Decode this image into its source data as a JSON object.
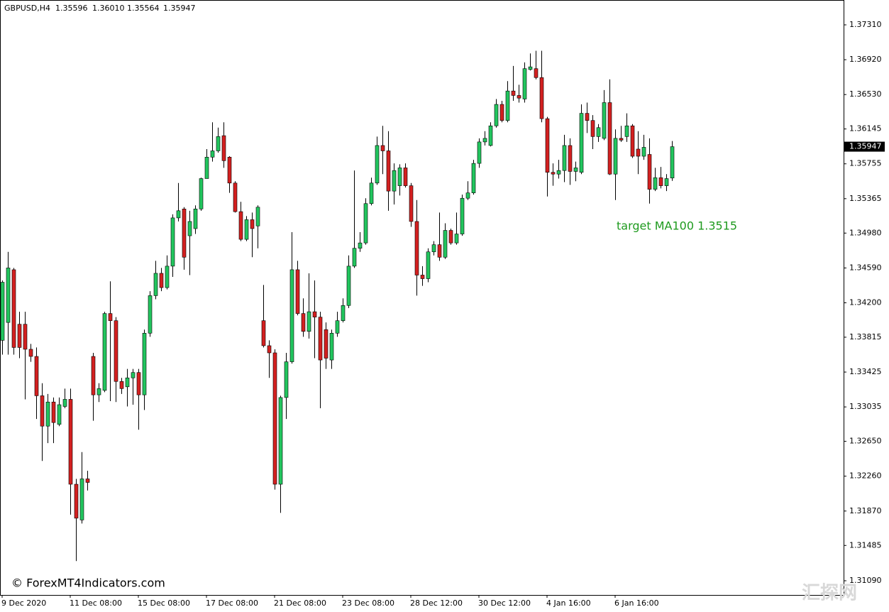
{
  "chart_data": {
    "type": "candlestick",
    "header": {
      "symbol": "GBPUSD,H4",
      "ohlc": [
        "1.35596",
        "1.36010",
        "1.35564",
        "1.35947"
      ]
    },
    "annotation": "target MA100 1.3515",
    "watermark": "© ForexMT4Indicators.com",
    "corner_mark": "汇探网",
    "last_price": {
      "value": 1.35947,
      "label": "1.35947"
    },
    "up_color": "#22c55e",
    "down_color": "#d32020",
    "wick_color": "#000000",
    "grid": false,
    "ylim": [
      1.30931,
      1.37588
    ],
    "yticks": [
      {
        "value": 1.3731,
        "label": "1.37310"
      },
      {
        "value": 1.3692,
        "label": "1.36920"
      },
      {
        "value": 1.3653,
        "label": "1.36530"
      },
      {
        "value": 1.36145,
        "label": "1.36145"
      },
      {
        "value": 1.35755,
        "label": "1.35755"
      },
      {
        "value": 1.35365,
        "label": "1.35365"
      },
      {
        "value": 1.3498,
        "label": "1.34980"
      },
      {
        "value": 1.3459,
        "label": "1.34590"
      },
      {
        "value": 1.342,
        "label": "1.34200"
      },
      {
        "value": 1.33815,
        "label": "1.33815"
      },
      {
        "value": 1.33425,
        "label": "1.33425"
      },
      {
        "value": 1.33035,
        "label": "1.33035"
      },
      {
        "value": 1.3265,
        "label": "1.32650"
      },
      {
        "value": 1.3226,
        "label": "1.32260"
      },
      {
        "value": 1.3187,
        "label": "1.31870"
      },
      {
        "value": 1.31485,
        "label": "1.31485"
      },
      {
        "value": 1.3109,
        "label": "1.31090"
      }
    ],
    "categories": [
      "9 Dec 2020",
      null,
      null,
      null,
      null,
      null,
      null,
      null,
      null,
      null,
      null,
      null,
      "11 Dec 08:00",
      null,
      null,
      null,
      null,
      null,
      null,
      null,
      null,
      null,
      null,
      null,
      "15 Dec 08:00",
      null,
      null,
      null,
      null,
      null,
      null,
      null,
      null,
      null,
      null,
      null,
      "17 Dec 08:00",
      null,
      null,
      null,
      null,
      null,
      null,
      null,
      null,
      null,
      null,
      null,
      "21 Dec 08:00",
      null,
      null,
      null,
      null,
      null,
      null,
      null,
      null,
      null,
      null,
      null,
      "23 Dec 08:00",
      null,
      null,
      null,
      null,
      null,
      null,
      null,
      null,
      null,
      null,
      null,
      "28 Dec 12:00",
      null,
      null,
      null,
      null,
      null,
      null,
      null,
      null,
      null,
      null,
      null,
      "30 Dec 12:00",
      null,
      null,
      null,
      null,
      null,
      null,
      null,
      null,
      null,
      null,
      null,
      "4 Jan 16:00",
      null,
      null,
      null,
      null,
      null,
      null,
      null,
      null,
      null,
      null,
      null,
      "6 Jan 16:00",
      null,
      null,
      null,
      null,
      null,
      null,
      null,
      null,
      null,
      null
    ],
    "open": [
      1.3378,
      1.3398,
      1.3457,
      1.3396,
      1.3396,
      1.3368,
      1.336,
      1.3316,
      1.3282,
      1.3309,
      1.3284,
      1.3304,
      1.3312,
      1.3217,
      1.3177,
      1.3223,
      1.336,
      1.3317,
      1.3322,
      1.3408,
      1.34,
      1.3332,
      1.3326,
      1.3336,
      1.3342,
      1.3317,
      1.3386,
      1.3428,
      1.3453,
      1.3437,
      1.3461,
      1.3515,
      1.3525,
      1.3495,
      1.3503,
      1.3525,
      1.3559,
      1.3583,
      1.359,
      1.3607,
      1.3583,
      1.3554,
      1.3522,
      1.3491,
      1.3513,
      1.3506,
      1.34,
      1.3372,
      1.3364,
      1.3217,
      1.3314,
      1.3354,
      1.3457,
      1.3408,
      1.3388,
      1.341,
      1.3404,
      1.339,
      1.3356,
      1.3386,
      1.34,
      1.3417,
      1.3461,
      1.3481,
      1.3487,
      1.3531,
      1.3554,
      1.3596,
      1.359,
      1.3545,
      1.3551,
      1.3571,
      1.3551,
      1.3511,
      1.3451,
      1.3447,
      1.3477,
      1.3485,
      1.3471,
      1.3501,
      1.3487,
      1.3497,
      1.3537,
      1.3543,
      1.3576,
      1.36,
      1.3596,
      1.3618,
      1.3642,
      1.3624,
      1.3657,
      1.3652,
      1.3648,
      1.3681,
      1.3682,
      1.3672,
      1.3626,
      1.3566,
      1.3564,
      1.3568,
      1.3596,
      1.3567,
      1.3566,
      1.3632,
      1.3624,
      1.3606,
      1.3604,
      1.3644,
      1.3564,
      1.3604,
      1.3606,
      1.3618,
      1.3592,
      1.3584,
      1.3586,
      1.3547,
      1.356,
      1.3551,
      1.35596
    ],
    "high": [
      1.3445,
      1.3477,
      1.3459,
      1.341,
      1.341,
      1.3374,
      1.337,
      1.333,
      1.3318,
      1.3314,
      1.3314,
      1.3324,
      1.3324,
      1.3223,
      1.3253,
      1.3232,
      1.3364,
      1.333,
      1.341,
      1.3444,
      1.3404,
      1.3336,
      1.3346,
      1.3346,
      1.3346,
      1.339,
      1.3433,
      1.3467,
      1.3459,
      1.3473,
      1.3519,
      1.3554,
      1.3527,
      1.3523,
      1.3529,
      1.356,
      1.3592,
      1.3622,
      1.3616,
      1.3622,
      1.3584,
      1.3556,
      1.3533,
      1.3517,
      1.3521,
      1.3529,
      1.344,
      1.3378,
      1.3368,
      1.3316,
      1.3364,
      1.3499,
      1.3467,
      1.3425,
      1.3453,
      1.3445,
      1.341,
      1.3398,
      1.339,
      1.341,
      1.3425,
      1.3473,
      1.3568,
      1.3499,
      1.3537,
      1.356,
      1.3606,
      1.3618,
      1.3612,
      1.3576,
      1.3575,
      1.3576,
      1.3554,
      1.3535,
      1.3461,
      1.3481,
      1.3489,
      1.3521,
      1.3509,
      1.3503,
      1.3521,
      1.3541,
      1.3556,
      1.358,
      1.3604,
      1.3612,
      1.3622,
      1.3648,
      1.3646,
      1.3668,
      1.3685,
      1.3664,
      1.3689,
      1.3699,
      1.3702,
      1.3702,
      1.3628,
      1.3576,
      1.358,
      1.3608,
      1.3604,
      1.3578,
      1.3642,
      1.3644,
      1.363,
      1.362,
      1.3658,
      1.367,
      1.3614,
      1.3618,
      1.3632,
      1.362,
      1.3612,
      1.3608,
      1.3604,
      1.3571,
      1.3572,
      1.3564,
      1.3601
    ],
    "low": [
      1.3362,
      1.3362,
      1.3362,
      1.3358,
      1.3312,
      1.3354,
      1.329,
      1.3243,
      1.3263,
      1.3263,
      1.3282,
      1.3302,
      1.3183,
      1.3131,
      1.3173,
      1.321,
      1.3288,
      1.3309,
      1.332,
      1.331,
      1.3309,
      1.3318,
      1.3304,
      1.3306,
      1.3278,
      1.33,
      1.3382,
      1.3424,
      1.3433,
      1.3435,
      1.3449,
      1.3511,
      1.3457,
      1.3451,
      1.3497,
      1.3523,
      1.3559,
      1.3578,
      1.3588,
      1.3571,
      1.3543,
      1.3521,
      1.3489,
      1.3489,
      1.3471,
      1.3481,
      1.337,
      1.3336,
      1.3211,
      1.3185,
      1.329,
      1.3352,
      1.3406,
      1.3382,
      1.338,
      1.3358,
      1.3302,
      1.3346,
      1.3346,
      1.3382,
      1.3398,
      1.3414,
      1.3459,
      1.3477,
      1.3485,
      1.3529,
      1.3552,
      1.3564,
      1.3523,
      1.353,
      1.354,
      1.3549,
      1.3505,
      1.3428,
      1.3439,
      1.3443,
      1.3473,
      1.3467,
      1.3469,
      1.3485,
      1.3485,
      1.3495,
      1.3535,
      1.3541,
      1.3571,
      1.3596,
      1.3595,
      1.3616,
      1.3622,
      1.3622,
      1.3646,
      1.3644,
      1.3644,
      1.368,
      1.367,
      1.3622,
      1.3539,
      1.3551,
      1.3559,
      1.3555,
      1.3552,
      1.3556,
      1.3564,
      1.361,
      1.3592,
      1.36,
      1.3602,
      1.3563,
      1.3535,
      1.36,
      1.36,
      1.3582,
      1.3564,
      1.358,
      1.3531,
      1.3545,
      1.3548,
      1.3545,
      1.35564
    ],
    "close": [
      1.3443,
      1.3459,
      1.337,
      1.337,
      1.3368,
      1.336,
      1.3316,
      1.3282,
      1.3309,
      1.3286,
      1.3306,
      1.3312,
      1.3217,
      1.3179,
      1.3223,
      1.3219,
      1.3317,
      1.3324,
      1.3408,
      1.34,
      1.3332,
      1.3324,
      1.3336,
      1.3342,
      1.3317,
      1.3386,
      1.3428,
      1.3453,
      1.3437,
      1.3461,
      1.3515,
      1.3523,
      1.3471,
      1.3511,
      1.3525,
      1.3559,
      1.3583,
      1.359,
      1.3606,
      1.3579,
      1.3554,
      1.3522,
      1.3491,
      1.3513,
      1.3503,
      1.3527,
      1.3372,
      1.3364,
      1.3217,
      1.3314,
      1.3354,
      1.3457,
      1.3408,
      1.3388,
      1.341,
      1.3404,
      1.3356,
      1.3358,
      1.3386,
      1.34,
      1.3417,
      1.3461,
      1.3481,
      1.3487,
      1.3531,
      1.3554,
      1.3596,
      1.359,
      1.3545,
      1.3568,
      1.3571,
      1.3551,
      1.3511,
      1.3451,
      1.3447,
      1.3477,
      1.3485,
      1.3471,
      1.3501,
      1.3487,
      1.3497,
      1.3537,
      1.3543,
      1.3576,
      1.36,
      1.3604,
      1.3618,
      1.3642,
      1.3624,
      1.3657,
      1.3652,
      1.3649,
      1.3682,
      1.3684,
      1.3672,
      1.3626,
      1.3566,
      1.3564,
      1.3568,
      1.3596,
      1.3567,
      1.3571,
      1.3632,
      1.3624,
      1.3606,
      1.3616,
      1.3644,
      1.3564,
      1.3604,
      1.3602,
      1.3618,
      1.3584,
      1.3584,
      1.3594,
      1.3547,
      1.356,
      1.3551,
      1.3559,
      1.35947
    ]
  }
}
